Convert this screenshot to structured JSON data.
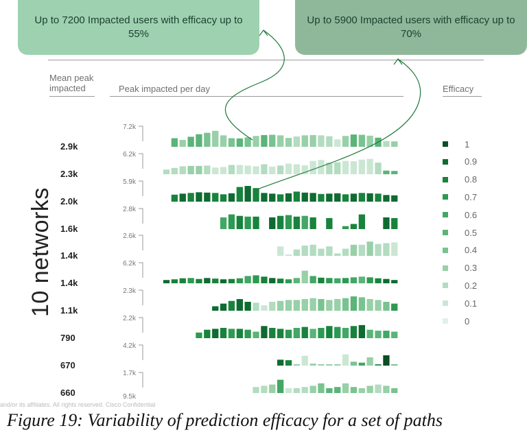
{
  "callouts": [
    {
      "text": "Up to 7200 Impacted users with efficacy up to 55%"
    },
    {
      "text": "Up to 5900 Impacted users with efficacy up to 70%"
    }
  ],
  "headers": {
    "mean_peak": "Mean peak impacted",
    "peak_per_day": "Peak impacted per day",
    "efficacy": "Efficacy"
  },
  "footer_text": "and/or its affiliates. All rights reserved. Cisco Confidential",
  "caption": "Figure 19: Variability of prediction efficacy for a set of paths",
  "legend": {
    "labels": [
      "1",
      "0.9",
      "0.8",
      "0.7",
      "0.6",
      "0.5",
      "0.4",
      "0.3",
      "0.2",
      "0.1",
      "0"
    ],
    "colors": [
      "#0b4d25",
      "#0f6b31",
      "#18833c",
      "#2d9a52",
      "#43a765",
      "#5bb478",
      "#79c390",
      "#98d0a8",
      "#b3dcc0",
      "#cbe7d4",
      "#e0f1e6"
    ]
  },
  "chart_data": {
    "type": "bar",
    "title": "",
    "xlabel": "Peak impacted per day",
    "ylabel": "10 networks",
    "grid": false,
    "legend_placement": "right",
    "series": [
      {
        "mean_peak": "2.9k",
        "max_label": "7.2k",
        "max": 7.2,
        "values": [
          3.0,
          2.4,
          3.5,
          4.4,
          4.9,
          5.6,
          4.0,
          3.0,
          2.9,
          3.3,
          3.8,
          4.1,
          4.2,
          4.0,
          3.1,
          3.6,
          4.0,
          4.1,
          4.0,
          3.7,
          2.6,
          3.8,
          4.3,
          4.2,
          3.9,
          3.2,
          2.0,
          1.9
        ],
        "efficacy": [
          0.5,
          0.3,
          0.5,
          0.5,
          0.4,
          0.3,
          0.3,
          0.4,
          0.5,
          0.4,
          0.3,
          0.5,
          0.4,
          0.3,
          0.3,
          0.2,
          0.3,
          0.3,
          0.2,
          0.2,
          0.1,
          0.3,
          0.5,
          0.4,
          0.3,
          0.5,
          0.2,
          0.3
        ]
      },
      {
        "mean_peak": "2.3k",
        "max_label": "6.2k",
        "max": 6.2,
        "values": [
          1.4,
          1.9,
          2.4,
          2.5,
          2.5,
          2.6,
          2.0,
          2.2,
          2.8,
          2.8,
          2.6,
          2.4,
          3.0,
          2.3,
          2.6,
          3.2,
          3.0,
          2.7,
          4.0,
          4.3,
          3.5,
          3.6,
          4.0,
          3.9,
          4.4,
          4.6,
          3.5,
          1.1,
          1.0
        ],
        "efficacy": [
          0.2,
          0.2,
          0.2,
          0.3,
          0.3,
          0.2,
          0.1,
          0.1,
          0.2,
          0.1,
          0.1,
          0.1,
          0.2,
          0.1,
          0.2,
          0.1,
          0.1,
          0.1,
          0.1,
          0.1,
          0.2,
          0.2,
          0.1,
          0.1,
          0.1,
          0.1,
          0.2,
          0.5,
          0.5
        ]
      },
      {
        "mean_peak": "2.0k",
        "max_label": "5.9k",
        "max": 5.9,
        "values": [
          2.0,
          2.3,
          2.5,
          2.7,
          2.6,
          2.5,
          2.1,
          2.4,
          4.2,
          4.5,
          3.9,
          2.5,
          2.3,
          2.1,
          2.4,
          2.9,
          2.6,
          2.5,
          2.2,
          2.3,
          2.4,
          2.1,
          2.3,
          2.5,
          2.4,
          2.3,
          1.9,
          1.8
        ],
        "efficacy": [
          0.8,
          0.9,
          0.8,
          0.9,
          0.9,
          0.8,
          0.8,
          0.9,
          0.8,
          0.9,
          0.8,
          0.9,
          0.9,
          0.8,
          0.9,
          0.8,
          0.9,
          0.9,
          0.8,
          0.9,
          0.9,
          0.8,
          0.9,
          0.8,
          0.9,
          0.8,
          0.9,
          0.9
        ]
      },
      {
        "mean_peak": "1.6k",
        "max_label": "2.8k",
        "max": 2.8,
        "values": [
          1.6,
          2.0,
          1.8,
          1.7,
          1.7,
          0,
          1.6,
          1.8,
          1.9,
          1.7,
          1.8,
          1.6,
          0,
          1.5,
          0,
          0.4,
          0.7,
          2.0,
          0,
          0,
          1.6,
          1.5
        ],
        "efficacy": [
          0.6,
          0.7,
          0.8,
          0.7,
          0.8,
          0,
          0.9,
          0.8,
          0.7,
          0.8,
          0.6,
          0.8,
          0,
          0.8,
          0,
          0.7,
          0.8,
          0.8,
          0,
          0,
          0.9,
          0.8
        ]
      },
      {
        "mean_peak": "1.4k",
        "max_label": "2.6k",
        "max": 2.6,
        "values": [
          1.2,
          0.1,
          0.8,
          1.3,
          1.4,
          0.9,
          1.2,
          0.3,
          0.9,
          1.4,
          1.4,
          1.8,
          1.5,
          1.6,
          1.7
        ],
        "efficacy": [
          0.1,
          0.1,
          0.2,
          0.2,
          0.2,
          0.2,
          0.2,
          0.2,
          0.2,
          0.3,
          0.2,
          0.3,
          0.2,
          0.2,
          0.1
        ]
      },
      {
        "mean_peak": "1.4k",
        "max_label": "6.2k",
        "max": 6.2,
        "values": [
          1.0,
          1.2,
          1.5,
          1.6,
          1.3,
          1.6,
          1.4,
          1.2,
          1.3,
          1.5,
          2.2,
          2.4,
          2.0,
          1.6,
          1.4,
          1.2,
          1.6,
          3.8,
          2.2,
          1.7,
          1.6,
          1.5,
          1.6,
          1.8,
          2.0,
          1.8,
          1.5,
          1.3,
          1.0
        ],
        "efficacy": [
          0.9,
          0.8,
          0.8,
          0.7,
          0.8,
          0.9,
          0.8,
          0.9,
          0.8,
          0.7,
          0.6,
          0.7,
          0.8,
          0.9,
          0.8,
          0.7,
          0.5,
          0.3,
          0.6,
          0.8,
          0.7,
          0.6,
          0.7,
          0.6,
          0.5,
          0.7,
          0.8,
          0.9,
          0.9
        ]
      },
      {
        "mean_peak": "1.1k",
        "max_label": "2.3k",
        "max": 2.3,
        "values": [
          0.5,
          0.8,
          1.1,
          1.3,
          1.0,
          0.9,
          0.6,
          1.0,
          1.1,
          1.2,
          1.2,
          1.3,
          1.4,
          1.3,
          1.2,
          1.3,
          1.4,
          1.6,
          1.5,
          1.3,
          1.2,
          1.0,
          0.8
        ],
        "efficacy": [
          0.9,
          0.9,
          0.8,
          0.9,
          0.9,
          0.2,
          0.1,
          0.2,
          0.3,
          0.3,
          0.3,
          0.3,
          0.3,
          0.4,
          0.3,
          0.3,
          0.4,
          0.5,
          0.4,
          0.3,
          0.3,
          0.4,
          0.7
        ]
      },
      {
        "mean_peak": "790",
        "max_label": "2.2k",
        "max": 2.2,
        "values": [
          0.6,
          0.9,
          1.0,
          1.1,
          1.0,
          1.0,
          0.9,
          0.7,
          1.3,
          1.1,
          1.0,
          0.9,
          1.1,
          1.2,
          1.0,
          1.1,
          1.3,
          1.2,
          1.1,
          1.3,
          1.4,
          0.9,
          0.8,
          0.8,
          0.7
        ],
        "efficacy": [
          0.7,
          0.8,
          0.9,
          0.8,
          0.7,
          0.8,
          0.7,
          0.5,
          0.9,
          0.8,
          0.8,
          0.7,
          0.6,
          0.8,
          0.5,
          0.7,
          0.8,
          0.7,
          0.6,
          0.8,
          0.9,
          0.5,
          0.5,
          0.6,
          0.5
        ]
      },
      {
        "mean_peak": "670",
        "max_label": "4.2k",
        "max": 4.2,
        "values": [
          1.2,
          1.1,
          0.3,
          2.0,
          0.4,
          0.2,
          0.2,
          0.2,
          2.3,
          0.8,
          0.6,
          1.7,
          0.2,
          2.1,
          0.2
        ],
        "efficacy": [
          0.9,
          0.8,
          0.3,
          0.1,
          0.3,
          0.3,
          0.3,
          0.3,
          0.1,
          0.4,
          0.6,
          0.3,
          0.7,
          1.0,
          0.4
        ]
      },
      {
        "mean_peak": "660",
        "max_label": "1.7k",
        "max": 1.7,
        "values": [
          0.5,
          0.6,
          0.7,
          1.1,
          0.4,
          0.4,
          0.5,
          0.6,
          0.8,
          0.4,
          0.5,
          0.8,
          0.5,
          0.4,
          0.6,
          0.7,
          0.6,
          0.4
        ],
        "efficacy": [
          0.2,
          0.2,
          0.3,
          0.6,
          0.1,
          0.2,
          0.2,
          0.3,
          0.4,
          0.5,
          0.5,
          0.3,
          0.4,
          0.3,
          0.3,
          0.2,
          0.3,
          0.4
        ]
      }
    ],
    "extra_axis_label": "9.5k"
  }
}
